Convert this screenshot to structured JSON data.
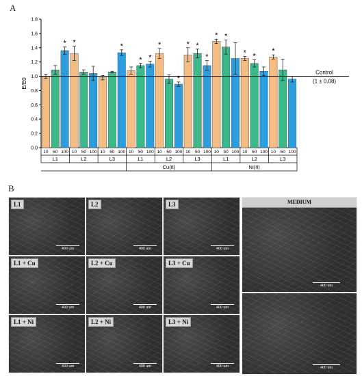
{
  "panels": {
    "a": "A",
    "b": "B"
  },
  "chart_data": {
    "type": "bar",
    "ylabel": "E/E0",
    "ylim": [
      0,
      1.8
    ],
    "yticks": [
      "0.0",
      "0.2",
      "0.4",
      "0.6",
      "0.8",
      "1.0",
      "1.2",
      "1.4",
      "1.6",
      "1.8"
    ],
    "concentration_labels": [
      "10",
      "50",
      "100"
    ],
    "ligand_labels": [
      "L1",
      "L2",
      "L3",
      "L1",
      "L2",
      "L3",
      "L1",
      "L2",
      "L3"
    ],
    "metal_labels": [
      "Cu(II)",
      "Ni(II)"
    ],
    "control_line": {
      "value": 1.0,
      "label": "Control",
      "sublabel": "(1 ± 0.08)"
    },
    "series_colors": [
      "#f4bd84",
      "#3cb88a",
      "#2c9ede"
    ],
    "groups": [
      {
        "ligand": "L1",
        "metal": "",
        "values": [
          1.0,
          1.09,
          1.36
        ],
        "errors": [
          0.03,
          0.06,
          0.05
        ],
        "significant": [
          false,
          false,
          true
        ]
      },
      {
        "ligand": "L2",
        "metal": "",
        "values": [
          1.32,
          1.06,
          1.04
        ],
        "errors": [
          0.1,
          0.03,
          0.1
        ],
        "significant": [
          true,
          false,
          false
        ]
      },
      {
        "ligand": "L3",
        "metal": "",
        "values": [
          0.98,
          1.06,
          1.33
        ],
        "errors": [
          0.03,
          0.01,
          0.04
        ],
        "significant": [
          false,
          false,
          true
        ]
      },
      {
        "ligand": "L1",
        "metal": "Cu(II)",
        "values": [
          1.08,
          1.15,
          1.17
        ],
        "errors": [
          0.05,
          0.03,
          0.04
        ],
        "significant": [
          false,
          true,
          true
        ]
      },
      {
        "ligand": "L2",
        "metal": "Cu(II)",
        "values": [
          1.32,
          0.96,
          0.89
        ],
        "errors": [
          0.07,
          0.06,
          0.03
        ],
        "significant": [
          true,
          false,
          true
        ]
      },
      {
        "ligand": "L3",
        "metal": "Cu(II)",
        "values": [
          1.3,
          1.32,
          1.15
        ],
        "errors": [
          0.1,
          0.06,
          0.07
        ],
        "significant": [
          true,
          true,
          true
        ]
      },
      {
        "ligand": "L1",
        "metal": "Ni(II)",
        "values": [
          1.49,
          1.41,
          1.25
        ],
        "errors": [
          0.03,
          0.1,
          0.22
        ],
        "significant": [
          true,
          true,
          false
        ]
      },
      {
        "ligand": "L2",
        "metal": "Ni(II)",
        "values": [
          1.25,
          1.18,
          1.07
        ],
        "errors": [
          0.03,
          0.05,
          0.06
        ],
        "significant": [
          true,
          true,
          false
        ]
      },
      {
        "ligand": "L3",
        "metal": "Ni(II)",
        "values": [
          1.27,
          1.09,
          0.96
        ],
        "errors": [
          0.03,
          0.15,
          0.04
        ],
        "significant": [
          true,
          false,
          false
        ]
      }
    ]
  },
  "micrographs": {
    "scale_label": "400 um",
    "tiles": [
      {
        "label": "L1"
      },
      {
        "label": "L2"
      },
      {
        "label": "L3"
      },
      {
        "label": "L1 + Cu"
      },
      {
        "label": "L2 + Cu"
      },
      {
        "label": "L3 + Cu"
      },
      {
        "label": "L1 + Ni"
      },
      {
        "label": "L2 + Ni"
      },
      {
        "label": "L3 + Ni"
      }
    ],
    "medium_label": "MEDIUM"
  }
}
